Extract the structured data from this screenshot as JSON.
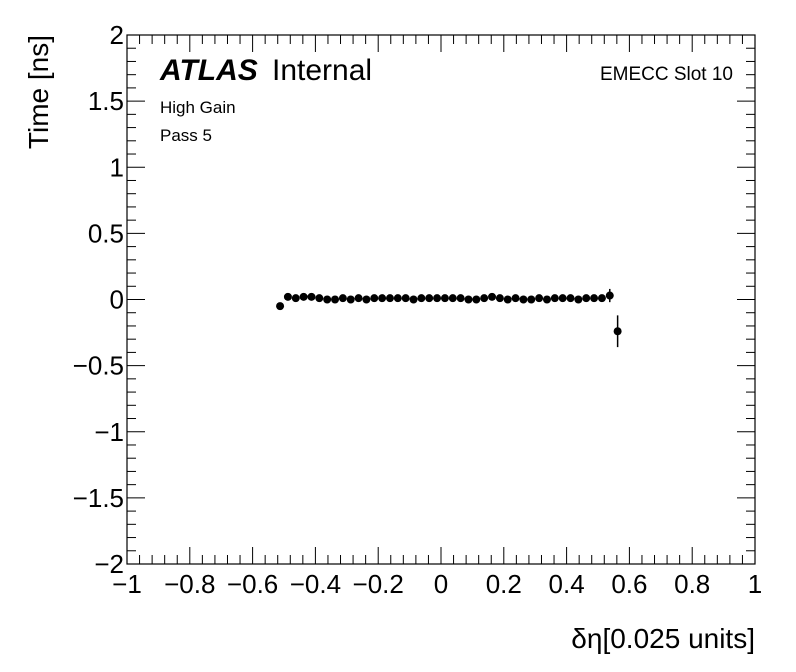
{
  "chart_data": {
    "type": "scatter",
    "xlabel": "δη[0.025 units]",
    "ylabel": "Time [ns]",
    "xlim": [
      -1,
      1
    ],
    "ylim": [
      -2,
      2
    ],
    "x_ticks": [
      -1,
      -0.8,
      -0.6,
      -0.4,
      -0.2,
      0,
      0.2,
      0.4,
      0.6,
      0.8,
      1
    ],
    "x_tick_labels": [
      "−1",
      "−0.8",
      "−0.6",
      "−0.4",
      "−0.2",
      "0",
      "0.2",
      "0.4",
      "0.6",
      "0.8",
      "1"
    ],
    "y_ticks": [
      -2,
      -1.5,
      -1,
      -0.5,
      0,
      0.5,
      1,
      1.5,
      2
    ],
    "y_tick_labels": [
      "−2",
      "−1.5",
      "−1",
      "−0.5",
      "0",
      "0.5",
      "1",
      "1.5",
      "2"
    ],
    "grid": false,
    "series": [
      {
        "x": [
          -0.5125,
          -0.4875,
          -0.4625,
          -0.4375,
          -0.4125,
          -0.3875,
          -0.3625,
          -0.3375,
          -0.3125,
          -0.2875,
          -0.2625,
          -0.2375,
          -0.2125,
          -0.1875,
          -0.1625,
          -0.1375,
          -0.1125,
          -0.0875,
          -0.0625,
          -0.0375,
          -0.0125,
          0.0125,
          0.0375,
          0.0625,
          0.0875,
          0.1125,
          0.1375,
          0.1625,
          0.1875,
          0.2125,
          0.2375,
          0.2625,
          0.2875,
          0.3125,
          0.3375,
          0.3625,
          0.3875,
          0.4125,
          0.4375,
          0.4625,
          0.4875,
          0.5125,
          0.5375,
          0.5625
        ],
        "y": [
          -0.05,
          0.02,
          0.01,
          0.02,
          0.02,
          0.01,
          0.0,
          0.0,
          0.01,
          0.0,
          0.01,
          0.0,
          0.01,
          0.01,
          0.01,
          0.01,
          0.01,
          0.0,
          0.01,
          0.01,
          0.01,
          0.01,
          0.01,
          0.01,
          0.0,
          0.0,
          0.01,
          0.02,
          0.01,
          0.0,
          0.01,
          0.0,
          0.0,
          0.01,
          0.0,
          0.01,
          0.01,
          0.01,
          0.0,
          0.01,
          0.01,
          0.01,
          0.03,
          -0.24
        ],
        "yerr": [
          0.02,
          0.01,
          0.01,
          0.01,
          0.01,
          0.01,
          0.01,
          0.01,
          0.01,
          0.01,
          0.01,
          0.01,
          0.01,
          0.01,
          0.01,
          0.01,
          0.01,
          0.01,
          0.01,
          0.01,
          0.01,
          0.01,
          0.01,
          0.01,
          0.01,
          0.01,
          0.01,
          0.01,
          0.01,
          0.01,
          0.01,
          0.01,
          0.01,
          0.01,
          0.01,
          0.01,
          0.01,
          0.01,
          0.01,
          0.01,
          0.01,
          0.02,
          0.05,
          0.12
        ]
      }
    ],
    "annotations": {
      "atlas": "ATLAS",
      "atlas_sub": "Internal",
      "gain": "High Gain",
      "pass": "Pass 5",
      "slot": "EMECC Slot 10"
    }
  }
}
